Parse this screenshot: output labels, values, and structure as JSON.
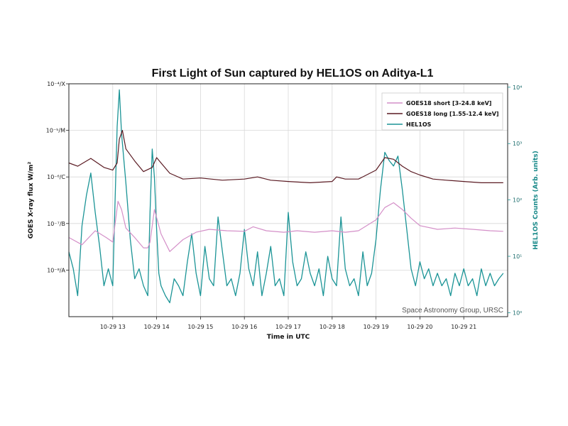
{
  "chart_data": {
    "type": "line",
    "title": "First Light of Sun captured by HEL1OS on Aditya-L1",
    "xlabel": "Time in UTC",
    "ylabel_left": "GOES X-ray flux W/m²",
    "ylabel_right": "HEL1OS Counts (Arb. units)",
    "x_ticks": [
      "10-29 13",
      "10-29 14",
      "10-29 15",
      "10-29 16",
      "10-29 17",
      "10-29 18",
      "10-29 19",
      "10-29 20",
      "10-29 21"
    ],
    "x_tick_hours": [
      13,
      14,
      15,
      16,
      17,
      18,
      19,
      20,
      21
    ],
    "xlim_hours": [
      12.0,
      22.0
    ],
    "left_scale": "log",
    "left_ylim": [
      1e-09,
      0.0001
    ],
    "left_ticks": [
      {
        "value": 1e-08,
        "label": "10⁻⁸/A"
      },
      {
        "value": 1e-07,
        "label": "10⁻⁷/B"
      },
      {
        "value": 1e-06,
        "label": "10⁻⁶/C"
      },
      {
        "value": 1e-05,
        "label": "10⁻⁵/M"
      },
      {
        "value": 0.0001,
        "label": "10⁻⁴/X"
      }
    ],
    "right_scale": "log",
    "right_ylim": [
      0.85,
      11500.0
    ],
    "right_ticks": [
      {
        "value": 1,
        "label": "10⁰"
      },
      {
        "value": 10,
        "label": "10¹"
      },
      {
        "value": 100,
        "label": "10²"
      },
      {
        "value": 1000,
        "label": "10³"
      },
      {
        "value": 10000,
        "label": "10⁴"
      }
    ],
    "grid": true,
    "legend_position": "top-right",
    "series": [
      {
        "name": "GOES18 short  [3-24.8 keV]",
        "color": "#d48fc8",
        "axis": "left",
        "x": [
          12.0,
          12.3,
          12.6,
          12.85,
          13.0,
          13.12,
          13.2,
          13.3,
          13.5,
          13.7,
          13.8,
          13.85,
          13.95,
          14.1,
          14.3,
          14.6,
          14.9,
          15.2,
          15.6,
          16.0,
          16.2,
          16.5,
          16.9,
          17.2,
          17.6,
          18.0,
          18.3,
          18.6,
          19.0,
          19.2,
          19.4,
          19.6,
          19.8,
          20.0,
          20.4,
          20.8,
          21.2,
          21.6,
          21.9
        ],
        "y": [
          5e-08,
          3.5e-08,
          7e-08,
          5e-08,
          4e-08,
          3e-07,
          2e-07,
          8e-08,
          5e-08,
          3e-08,
          3e-08,
          4e-08,
          2e-07,
          6e-08,
          2.5e-08,
          4.5e-08,
          6.5e-08,
          7.5e-08,
          7e-08,
          6.8e-08,
          8.5e-08,
          7e-08,
          6.5e-08,
          7e-08,
          6.5e-08,
          7e-08,
          6.5e-08,
          7e-08,
          1.2e-07,
          2.2e-07,
          2.8e-07,
          2e-07,
          1.3e-07,
          9e-08,
          7.5e-08,
          8e-08,
          7.5e-08,
          7e-08,
          6.8e-08
        ]
      },
      {
        "name": "GOES18 long  [1.55-12.4 keV]",
        "color": "#5a1a22",
        "axis": "left",
        "x": [
          12.0,
          12.2,
          12.5,
          12.8,
          13.0,
          13.1,
          13.15,
          13.22,
          13.3,
          13.5,
          13.7,
          13.9,
          14.0,
          14.1,
          14.3,
          14.6,
          15.0,
          15.5,
          16.0,
          16.3,
          16.6,
          17.0,
          17.5,
          18.0,
          18.1,
          18.3,
          18.6,
          19.0,
          19.2,
          19.4,
          19.6,
          19.8,
          20.0,
          20.3,
          20.6,
          21.0,
          21.4,
          21.9
        ],
        "y": [
          2e-06,
          1.7e-06,
          2.5e-06,
          1.6e-06,
          1.4e-06,
          2e-06,
          6.5e-06,
          1e-05,
          4e-06,
          2.2e-06,
          1.3e-06,
          1.6e-06,
          2.6e-06,
          2e-06,
          1.2e-06,
          9e-07,
          9.5e-07,
          8.5e-07,
          9e-07,
          1e-06,
          8.5e-07,
          8e-07,
          7.5e-07,
          8e-07,
          1e-06,
          9e-07,
          9e-07,
          1.4e-06,
          2.6e-06,
          2.4e-06,
          1.7e-06,
          1.3e-06,
          1.1e-06,
          9e-07,
          8.5e-07,
          8e-07,
          7.5e-07,
          7.5e-07
        ]
      },
      {
        "name": "HEL1OS",
        "color": "#1b9496",
        "axis": "right",
        "x": [
          12.0,
          12.1,
          12.2,
          12.3,
          12.4,
          12.5,
          12.6,
          12.7,
          12.8,
          12.9,
          13.0,
          13.05,
          13.1,
          13.15,
          13.2,
          13.3,
          13.4,
          13.5,
          13.6,
          13.7,
          13.8,
          13.85,
          13.9,
          13.95,
          14.0,
          14.05,
          14.1,
          14.2,
          14.3,
          14.4,
          14.5,
          14.6,
          14.7,
          14.8,
          14.9,
          15.0,
          15.1,
          15.2,
          15.3,
          15.4,
          15.5,
          15.6,
          15.7,
          15.8,
          15.9,
          16.0,
          16.1,
          16.2,
          16.3,
          16.4,
          16.5,
          16.6,
          16.7,
          16.8,
          16.9,
          17.0,
          17.1,
          17.2,
          17.3,
          17.4,
          17.5,
          17.6,
          17.7,
          17.8,
          17.9,
          18.0,
          18.1,
          18.2,
          18.3,
          18.4,
          18.5,
          18.6,
          18.7,
          18.8,
          18.9,
          19.0,
          19.1,
          19.2,
          19.3,
          19.4,
          19.5,
          19.6,
          19.7,
          19.8,
          19.9,
          20.0,
          20.1,
          20.2,
          20.3,
          20.4,
          20.5,
          20.6,
          20.7,
          20.8,
          20.9,
          21.0,
          21.1,
          21.2,
          21.3,
          21.4,
          21.5,
          21.6,
          21.7,
          21.8,
          21.9
        ],
        "y": [
          12,
          6,
          2,
          35,
          120,
          300,
          60,
          15,
          3,
          6,
          3,
          80,
          2000,
          9000,
          1500,
          200,
          20,
          4,
          6,
          3,
          2,
          60,
          800,
          250,
          30,
          5,
          3,
          2,
          1.5,
          4,
          3,
          2,
          8,
          25,
          5,
          2,
          15,
          4,
          3,
          50,
          12,
          3,
          4,
          2,
          5,
          30,
          6,
          3,
          12,
          2,
          5,
          15,
          3,
          4,
          2,
          60,
          8,
          3,
          4,
          12,
          5,
          3,
          6,
          2,
          10,
          4,
          3,
          50,
          6,
          3,
          4,
          2,
          12,
          3,
          5,
          20,
          150,
          700,
          500,
          400,
          600,
          150,
          30,
          6,
          3,
          8,
          4,
          6,
          3,
          5,
          3,
          4,
          2,
          5,
          3,
          6,
          3,
          4,
          2,
          6,
          3,
          5,
          3,
          4,
          5
        ]
      }
    ],
    "annotation": "Space Astronomy Group, URSC"
  }
}
